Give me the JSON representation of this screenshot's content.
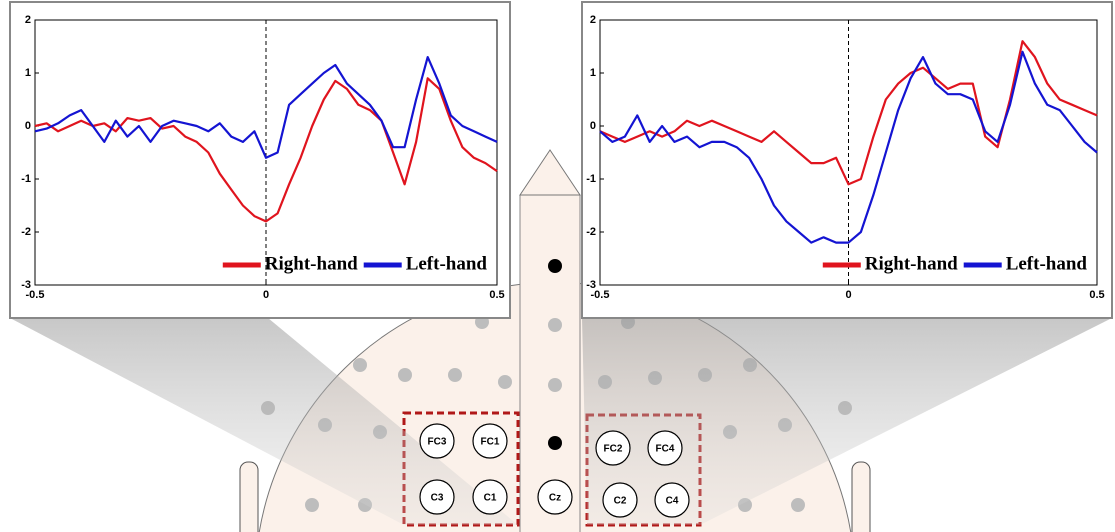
{
  "chart_data": [
    {
      "type": "line",
      "x": [
        -0.5,
        -0.475,
        -0.45,
        -0.425,
        -0.4,
        -0.375,
        -0.35,
        -0.325,
        -0.3,
        -0.275,
        -0.25,
        -0.225,
        -0.2,
        -0.175,
        -0.15,
        -0.125,
        -0.1,
        -0.075,
        -0.05,
        -0.025,
        0,
        0.025,
        0.05,
        0.075,
        0.1,
        0.125,
        0.15,
        0.175,
        0.2,
        0.225,
        0.25,
        0.275,
        0.3,
        0.325,
        0.35,
        0.375,
        0.4,
        0.425,
        0.45,
        0.475,
        0.5
      ],
      "series": [
        {
          "name": "Right-hand",
          "color": "#e0141e",
          "values": [
            0,
            0.05,
            -0.1,
            0,
            0.1,
            0,
            0.05,
            -0.1,
            0.15,
            0.1,
            0.15,
            -0.05,
            0,
            -0.2,
            -0.3,
            -0.5,
            -0.9,
            -1.2,
            -1.5,
            -1.7,
            -1.8,
            -1.65,
            -1.1,
            -0.6,
            0,
            0.5,
            0.85,
            0.7,
            0.4,
            0.3,
            0.1,
            -0.5,
            -1.1,
            -0.3,
            0.9,
            0.7,
            0.1,
            -0.4,
            -0.6,
            -0.7,
            -0.85
          ]
        },
        {
          "name": "Left-hand",
          "color": "#1414d2",
          "values": [
            -0.1,
            -0.05,
            0.05,
            0.2,
            0.3,
            0,
            -0.3,
            0.1,
            -0.2,
            0,
            -0.3,
            0,
            0.1,
            0.05,
            0,
            -0.1,
            0.05,
            -0.2,
            -0.3,
            -0.1,
            -0.6,
            -0.5,
            0.4,
            0.6,
            0.8,
            1.0,
            1.15,
            0.8,
            0.6,
            0.4,
            0.1,
            -0.4,
            -0.4,
            0.5,
            1.3,
            0.8,
            0.2,
            0,
            -0.1,
            -0.2,
            -0.3
          ]
        }
      ],
      "xlim": [
        -0.5,
        0.5
      ],
      "xticks": [
        -0.5,
        0,
        0.5
      ],
      "ylim": [
        -3,
        2
      ],
      "yticks": [
        -3,
        -2,
        -1,
        0,
        1,
        2
      ],
      "legend": "lower right"
    },
    {
      "type": "line",
      "x": [
        -0.5,
        -0.475,
        -0.45,
        -0.425,
        -0.4,
        -0.375,
        -0.35,
        -0.325,
        -0.3,
        -0.275,
        -0.25,
        -0.225,
        -0.2,
        -0.175,
        -0.15,
        -0.125,
        -0.1,
        -0.075,
        -0.05,
        -0.025,
        0,
        0.025,
        0.05,
        0.075,
        0.1,
        0.125,
        0.15,
        0.175,
        0.2,
        0.225,
        0.25,
        0.275,
        0.3,
        0.325,
        0.35,
        0.375,
        0.4,
        0.425,
        0.45,
        0.475,
        0.5
      ],
      "series": [
        {
          "name": "Right-hand",
          "color": "#e0141e",
          "values": [
            -0.1,
            -0.2,
            -0.3,
            -0.2,
            -0.1,
            -0.2,
            -0.1,
            0.1,
            0,
            0.1,
            0,
            -0.1,
            -0.2,
            -0.3,
            -0.1,
            -0.3,
            -0.5,
            -0.7,
            -0.7,
            -0.6,
            -1.1,
            -1.0,
            -0.2,
            0.5,
            0.8,
            1.0,
            1.1,
            0.9,
            0.7,
            0.8,
            0.8,
            -0.2,
            -0.4,
            0.5,
            1.6,
            1.3,
            0.8,
            0.5,
            0.4,
            0.3,
            0.2
          ]
        },
        {
          "name": "Left-hand",
          "color": "#1414d2",
          "values": [
            -0.1,
            -0.3,
            -0.2,
            0.2,
            -0.3,
            0,
            -0.3,
            -0.2,
            -0.4,
            -0.3,
            -0.3,
            -0.4,
            -0.6,
            -1.0,
            -1.5,
            -1.8,
            -2.0,
            -2.2,
            -2.1,
            -2.2,
            -2.2,
            -2.0,
            -1.3,
            -0.5,
            0.3,
            0.9,
            1.3,
            0.8,
            0.6,
            0.6,
            0.5,
            -0.1,
            -0.3,
            0.4,
            1.4,
            0.8,
            0.4,
            0.3,
            0,
            -0.3,
            -0.5
          ]
        }
      ],
      "xlim": [
        -0.5,
        0.5
      ],
      "xticks": [
        -0.5,
        0,
        0.5
      ],
      "ylim": [
        -3,
        2
      ],
      "yticks": [
        -3,
        -2,
        -1,
        0,
        1,
        2
      ],
      "legend": "lower right"
    }
  ],
  "electrodes": {
    "labels": [
      "FC3",
      "FC1",
      "C3",
      "C1",
      "Cz",
      "FC2",
      "FC4",
      "C2",
      "C4"
    ]
  }
}
